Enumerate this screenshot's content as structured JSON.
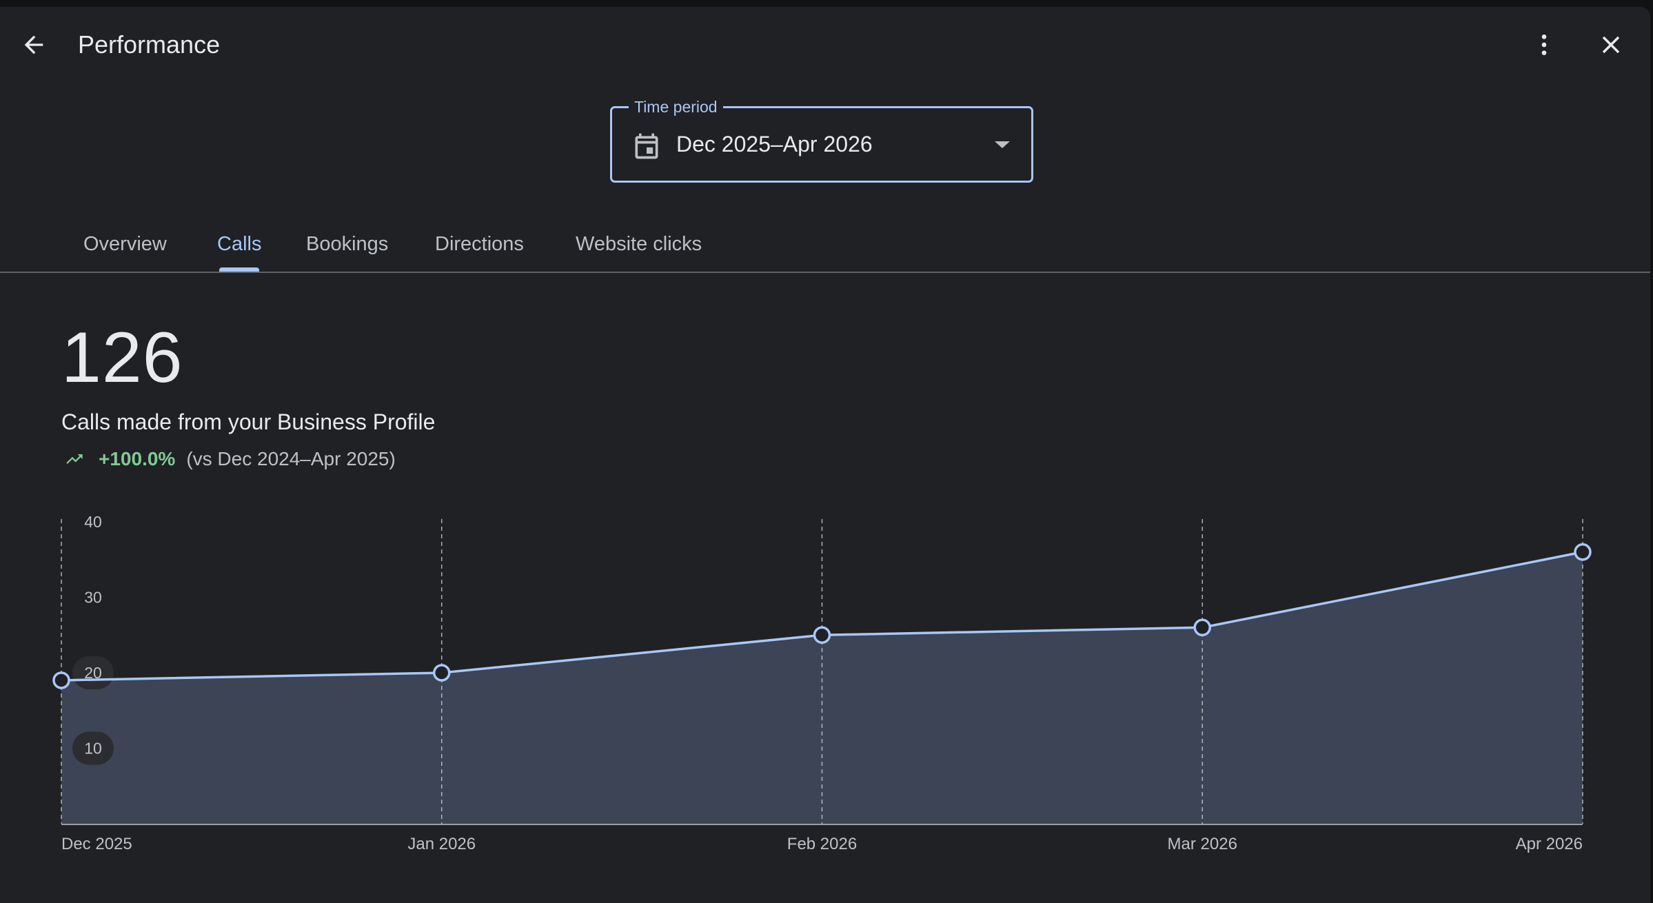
{
  "header": {
    "title": "Performance"
  },
  "time_period": {
    "label": "Time period",
    "value": "Dec 2025–Apr 2026"
  },
  "tabs": [
    {
      "label": "Overview",
      "active": false
    },
    {
      "label": "Calls",
      "active": true
    },
    {
      "label": "Bookings",
      "active": false
    },
    {
      "label": "Directions",
      "active": false
    },
    {
      "label": "Website clicks",
      "active": false
    }
  ],
  "metric": {
    "value": "126",
    "description": "Calls made from your Business Profile",
    "change": "+100.0%",
    "comparison": "(vs Dec 2024–Apr 2025)"
  },
  "icons": {
    "back": "arrow-back-icon",
    "menu": "more-vert-icon",
    "close": "close-icon",
    "calendar": "calendar-icon",
    "dropdown": "arrow-drop-down-icon",
    "trend": "trending-up-icon"
  },
  "colors": {
    "accent": "#a8c7fa",
    "positive": "#81c995",
    "background": "#202124",
    "area_fill": "#3c4455"
  },
  "chart_data": {
    "type": "area",
    "categories": [
      "Dec 2025",
      "Jan 2026",
      "Feb 2026",
      "Mar 2026",
      "Apr 2026"
    ],
    "series": [
      {
        "values": [
          19,
          20,
          25,
          26,
          36
        ]
      }
    ],
    "yticks": [
      "10",
      "20",
      "30",
      "40"
    ],
    "ylim": [
      0,
      40
    ],
    "grid": "vertical dashed"
  }
}
